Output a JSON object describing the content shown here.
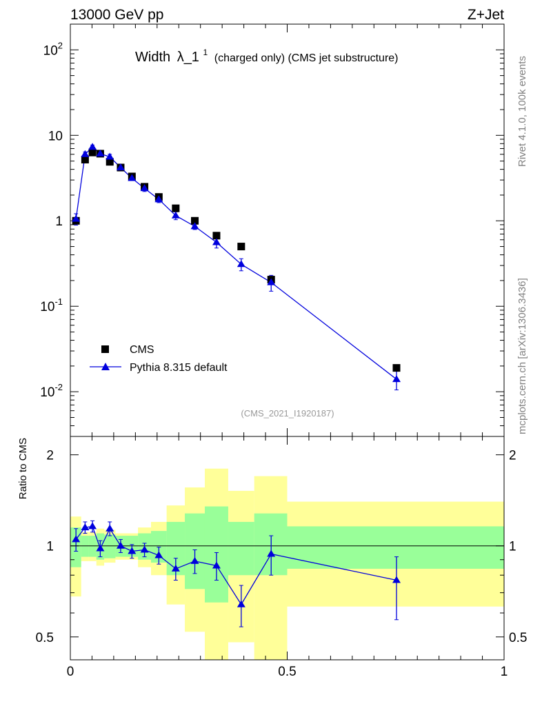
{
  "header": {
    "energy_label": "13000 GeV pp",
    "process_label": "Z+Jet"
  },
  "side_labels": {
    "rivet": "Rivet 4.1.0,  100k events",
    "source": "mcplots.cern.ch [arXiv:1306.3436]"
  },
  "colors": {
    "data": "#000000",
    "mc": "#0000dd",
    "band_inner": "#99ff99",
    "band_outer": "#ffff99"
  },
  "chart_data": [
    {
      "type": "scatter",
      "title_main": "Width",
      "title_symbol": "λ_1",
      "title_superscript": "1",
      "title_rest": "(charged only) (CMS jet substructure)",
      "analysis_id": "(CMS_2021_I1920187)",
      "yscale": "log",
      "ylim": [
        0.003,
        200
      ],
      "xlim": [
        0,
        1
      ],
      "y_ticks": [
        0.01,
        0.1,
        1,
        10,
        100
      ],
      "y_tick_labels": [
        "10^-2",
        "10^-1",
        "1",
        "10",
        "10^2"
      ],
      "legend_position": "bottom-left",
      "series": [
        {
          "name": "CMS",
          "marker": "square",
          "x": [
            0.013,
            0.034,
            0.051,
            0.069,
            0.091,
            0.116,
            0.142,
            0.171,
            0.204,
            0.243,
            0.287,
            0.337,
            0.394,
            0.463,
            0.752
          ],
          "values": [
            1.0,
            5.2,
            6.3,
            6.1,
            4.9,
            4.2,
            3.3,
            2.5,
            1.9,
            1.4,
            1.0,
            0.67,
            0.5,
            0.205,
            0.019
          ]
        },
        {
          "name": "Pythia 8.315 default",
          "marker": "triangle",
          "x": [
            0.013,
            0.034,
            0.051,
            0.069,
            0.091,
            0.116,
            0.142,
            0.171,
            0.204,
            0.243,
            0.287,
            0.337,
            0.394,
            0.463,
            0.752
          ],
          "values": [
            1.05,
            6.0,
            7.3,
            6.1,
            5.6,
            4.2,
            3.15,
            2.4,
            1.78,
            1.15,
            0.86,
            0.56,
            0.31,
            0.19,
            0.014
          ],
          "err_lo": [
            0.16,
            0.4,
            0.4,
            0.4,
            0.4,
            0.25,
            0.2,
            0.2,
            0.15,
            0.12,
            0.07,
            0.08,
            0.05,
            0.04,
            0.0035
          ],
          "err_hi": [
            0.16,
            0.4,
            0.4,
            0.4,
            0.4,
            0.25,
            0.2,
            0.2,
            0.15,
            0.12,
            0.07,
            0.08,
            0.05,
            0.04,
            0.0035
          ]
        }
      ]
    },
    {
      "type": "scatter",
      "ylabel": "Ratio to CMS",
      "yscale": "log",
      "ylim": [
        0.42,
        2.3
      ],
      "xlim": [
        0,
        1
      ],
      "y_ticks": [
        0.5,
        1,
        2
      ],
      "y_tick_labels": [
        "0.5",
        "1",
        "2"
      ],
      "x_ticks": [
        0,
        0.5,
        1
      ],
      "x_tick_labels": [
        "0",
        "0.5",
        "1"
      ],
      "bands": [
        {
          "edges": [
            0.0,
            0.025,
            0.042,
            0.06,
            0.078,
            0.104,
            0.128,
            0.156,
            0.186,
            0.222,
            0.264,
            0.31,
            0.364,
            0.424,
            0.5,
            1.0
          ],
          "inner_lo": [
            0.85,
            0.92,
            0.92,
            0.9,
            0.91,
            0.92,
            0.92,
            0.9,
            0.88,
            0.8,
            0.72,
            0.65,
            0.8,
            0.8,
            0.84
          ],
          "inner_hi": [
            1.15,
            1.08,
            1.08,
            1.1,
            1.09,
            1.08,
            1.08,
            1.1,
            1.12,
            1.2,
            1.28,
            1.35,
            1.2,
            1.28,
            1.16
          ],
          "outer_lo": [
            0.68,
            0.89,
            0.89,
            0.86,
            0.88,
            0.9,
            0.9,
            0.85,
            0.8,
            0.64,
            0.52,
            0.38,
            0.48,
            0.35,
            0.63
          ],
          "outer_hi": [
            1.25,
            1.11,
            1.11,
            1.14,
            1.13,
            1.1,
            1.1,
            1.15,
            1.2,
            1.36,
            1.56,
            1.8,
            1.52,
            1.7,
            1.4
          ]
        }
      ],
      "series": [
        {
          "name": "Pythia 8.315 default / CMS",
          "marker": "triangle",
          "x": [
            0.013,
            0.034,
            0.051,
            0.069,
            0.091,
            0.116,
            0.142,
            0.171,
            0.204,
            0.243,
            0.287,
            0.337,
            0.394,
            0.463,
            0.752
          ],
          "values": [
            1.05,
            1.15,
            1.16,
            0.98,
            1.14,
            1.0,
            0.96,
            0.97,
            0.93,
            0.84,
            0.89,
            0.86,
            0.64,
            0.94,
            0.77
          ],
          "err_lo": [
            0.09,
            0.05,
            0.05,
            0.06,
            0.06,
            0.05,
            0.05,
            0.05,
            0.06,
            0.07,
            0.08,
            0.09,
            0.1,
            0.14,
            0.2
          ],
          "err_hi": [
            0.09,
            0.05,
            0.05,
            0.06,
            0.06,
            0.05,
            0.05,
            0.05,
            0.06,
            0.07,
            0.08,
            0.09,
            0.1,
            0.14,
            0.15
          ]
        }
      ]
    }
  ]
}
